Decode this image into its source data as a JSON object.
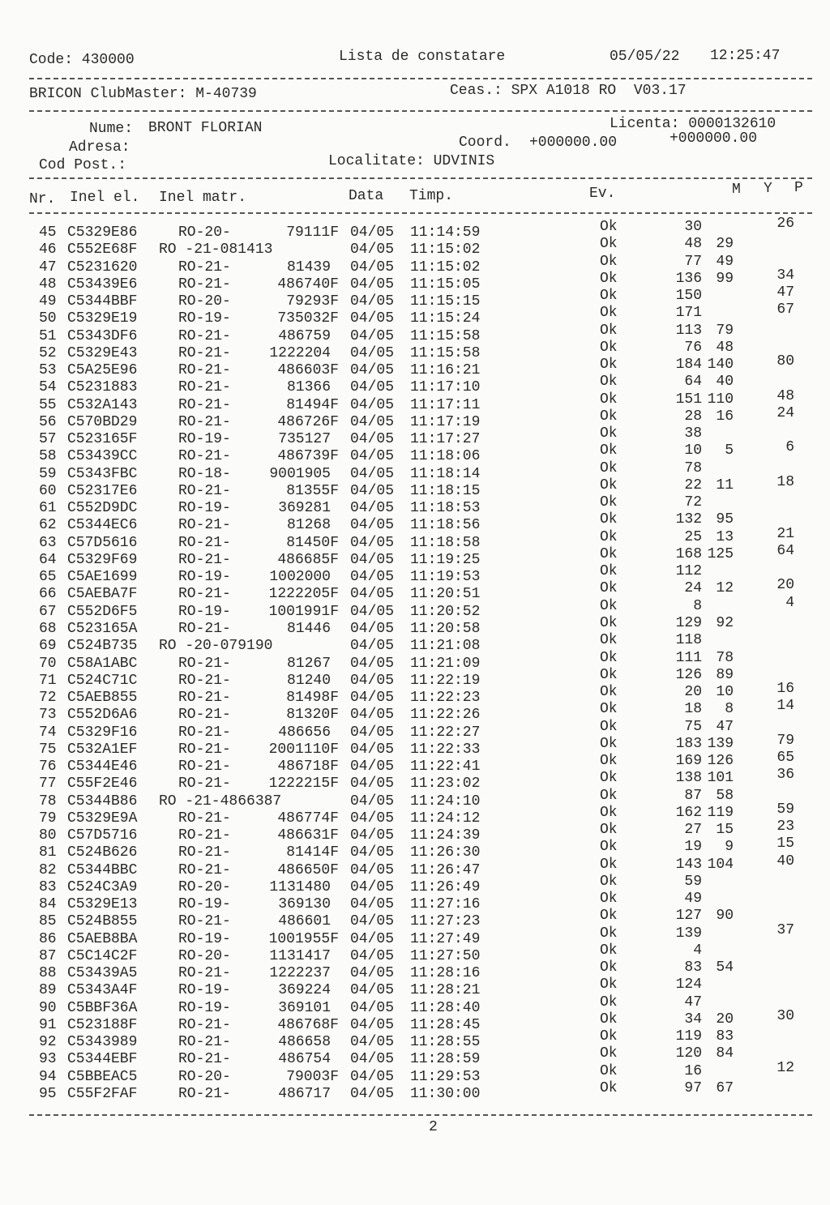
{
  "header": {
    "code": "Code: 430000",
    "title": "Lista de constatare",
    "date": "05/05/22",
    "time": "12:25:47",
    "club": "BRICON ClubMaster: M-40739",
    "clock": "Ceas.: SPX A1018 RO  V03.17",
    "name_label": "Nume:",
    "name": "BRONT FLORIAN",
    "licence": "Licenta: 0000132610",
    "address_label": "Adresa:",
    "coord_label": "Coord.",
    "coord1": "+000000.00",
    "coord2": "+000000.00",
    "postcode_label": "Cod Post.:",
    "locality": "Localitate: UDVINIS"
  },
  "columns": {
    "nr": "Nr.",
    "inel_el": "Inel el.",
    "inel_matr": "Inel matr.",
    "data": "Data",
    "timp": "Timp.",
    "ev": "Ev.",
    "m": "M",
    "y": "Y",
    "p": "P"
  },
  "rows": [
    [
      "45",
      "C5329E86",
      "RO-20-",
      "79111F",
      "04/05",
      "11:14:59",
      "Ok",
      "30",
      "",
      "26"
    ],
    [
      "46",
      "C552E68F",
      "RO -21-081413",
      "",
      "04/05",
      "11:15:02",
      "Ok",
      "48",
      "29",
      ""
    ],
    [
      "47",
      "C5231620",
      "RO-21-",
      "81439",
      "04/05",
      "11:15:02",
      "Ok",
      "77",
      "49",
      ""
    ],
    [
      "48",
      "C53439E6",
      "RO-21-",
      "486740F",
      "04/05",
      "11:15:05",
      "Ok",
      "136",
      "99",
      "34"
    ],
    [
      "49",
      "C5344BBF",
      "RO-20-",
      "79293F",
      "04/05",
      "11:15:15",
      "Ok",
      "150",
      "",
      "47"
    ],
    [
      "50",
      "C5329E19",
      "RO-19-",
      "735032F",
      "04/05",
      "11:15:24",
      "Ok",
      "171",
      "",
      "67"
    ],
    [
      "51",
      "C5343DF6",
      "RO-21-",
      "486759",
      "04/05",
      "11:15:58",
      "Ok",
      "113",
      "79",
      ""
    ],
    [
      "52",
      "C5329E43",
      "RO-21-",
      "1222204",
      "04/05",
      "11:15:58",
      "Ok",
      "76",
      "48",
      ""
    ],
    [
      "53",
      "C5A25E96",
      "RO-21-",
      "486603F",
      "04/05",
      "11:16:21",
      "Ok",
      "184",
      "140",
      "80"
    ],
    [
      "54",
      "C5231883",
      "RO-21-",
      "81366",
      "04/05",
      "11:17:10",
      "Ok",
      "64",
      "40",
      ""
    ],
    [
      "55",
      "C532A143",
      "RO-21-",
      "81494F",
      "04/05",
      "11:17:11",
      "Ok",
      "151",
      "110",
      "48"
    ],
    [
      "56",
      "C570BD29",
      "RO-21-",
      "486726F",
      "04/05",
      "11:17:19",
      "Ok",
      "28",
      "16",
      "24"
    ],
    [
      "57",
      "C523165F",
      "RO-19-",
      "735127",
      "04/05",
      "11:17:27",
      "Ok",
      "38",
      "",
      ""
    ],
    [
      "58",
      "C53439CC",
      "RO-21-",
      "486739F",
      "04/05",
      "11:18:06",
      "Ok",
      "10",
      "5",
      "6"
    ],
    [
      "59",
      "C5343FBC",
      "RO-18-",
      "9001905",
      "04/05",
      "11:18:14",
      "Ok",
      "78",
      "",
      ""
    ],
    [
      "60",
      "C52317E6",
      "RO-21-",
      "81355F",
      "04/05",
      "11:18:15",
      "Ok",
      "22",
      "11",
      "18"
    ],
    [
      "61",
      "C552D9DC",
      "RO-19-",
      "369281",
      "04/05",
      "11:18:53",
      "Ok",
      "72",
      "",
      ""
    ],
    [
      "62",
      "C5344EC6",
      "RO-21-",
      "81268",
      "04/05",
      "11:18:56",
      "Ok",
      "132",
      "95",
      ""
    ],
    [
      "63",
      "C57D5616",
      "RO-21-",
      "81450F",
      "04/05",
      "11:18:58",
      "Ok",
      "25",
      "13",
      "21"
    ],
    [
      "64",
      "C5329F69",
      "RO-21-",
      "486685F",
      "04/05",
      "11:19:25",
      "Ok",
      "168",
      "125",
      "64"
    ],
    [
      "65",
      "C5AE1699",
      "RO-19-",
      "1002000",
      "04/05",
      "11:19:53",
      "Ok",
      "112",
      "",
      ""
    ],
    [
      "66",
      "C5AEBA7F",
      "RO-21-",
      "1222205F",
      "04/05",
      "11:20:51",
      "Ok",
      "24",
      "12",
      "20"
    ],
    [
      "67",
      "C552D6F5",
      "RO-19-",
      "1001991F",
      "04/05",
      "11:20:52",
      "Ok",
      "8",
      "",
      "4"
    ],
    [
      "68",
      "C523165A",
      "RO-21-",
      "81446",
      "04/05",
      "11:20:58",
      "Ok",
      "129",
      "92",
      ""
    ],
    [
      "69",
      "C524B735",
      "RO -20-079190",
      "",
      "04/05",
      "11:21:08",
      "Ok",
      "118",
      "",
      ""
    ],
    [
      "70",
      "C58A1ABC",
      "RO-21-",
      "81267",
      "04/05",
      "11:21:09",
      "Ok",
      "111",
      "78",
      ""
    ],
    [
      "71",
      "C524C71C",
      "RO-21-",
      "81240",
      "04/05",
      "11:22:19",
      "Ok",
      "126",
      "89",
      ""
    ],
    [
      "72",
      "C5AEB855",
      "RO-21-",
      "81498F",
      "04/05",
      "11:22:23",
      "Ok",
      "20",
      "10",
      "16"
    ],
    [
      "73",
      "C552D6A6",
      "RO-21-",
      "81320F",
      "04/05",
      "11:22:26",
      "Ok",
      "18",
      "8",
      "14"
    ],
    [
      "74",
      "C5329F16",
      "RO-21-",
      "486656",
      "04/05",
      "11:22:27",
      "Ok",
      "75",
      "47",
      ""
    ],
    [
      "75",
      "C532A1EF",
      "RO-21-",
      "2001110F",
      "04/05",
      "11:22:33",
      "Ok",
      "183",
      "139",
      "79"
    ],
    [
      "76",
      "C5344E46",
      "RO-21-",
      "486718F",
      "04/05",
      "11:22:41",
      "Ok",
      "169",
      "126",
      "65"
    ],
    [
      "77",
      "C55F2E46",
      "RO-21-",
      "1222215F",
      "04/05",
      "11:23:02",
      "Ok",
      "138",
      "101",
      "36"
    ],
    [
      "78",
      "C5344B86",
      "RO -21-4866387",
      "",
      "04/05",
      "11:24:10",
      "Ok",
      "87",
      "58",
      ""
    ],
    [
      "79",
      "C5329E9A",
      "RO-21-",
      "486774F",
      "04/05",
      "11:24:12",
      "Ok",
      "162",
      "119",
      "59"
    ],
    [
      "80",
      "C57D5716",
      "RO-21-",
      "486631F",
      "04/05",
      "11:24:39",
      "Ok",
      "27",
      "15",
      "23"
    ],
    [
      "81",
      "C524B626",
      "RO-21-",
      "81414F",
      "04/05",
      "11:26:30",
      "Ok",
      "19",
      "9",
      "15"
    ],
    [
      "82",
      "C5344BBC",
      "RO-21-",
      "486650F",
      "04/05",
      "11:26:47",
      "Ok",
      "143",
      "104",
      "40"
    ],
    [
      "83",
      "C524C3A9",
      "RO-20-",
      "1131480",
      "04/05",
      "11:26:49",
      "Ok",
      "59",
      "",
      ""
    ],
    [
      "84",
      "C5329E13",
      "RO-19-",
      "369130",
      "04/05",
      "11:27:16",
      "Ok",
      "49",
      "",
      ""
    ],
    [
      "85",
      "C524B855",
      "RO-21-",
      "486601",
      "04/05",
      "11:27:23",
      "Ok",
      "127",
      "90",
      ""
    ],
    [
      "86",
      "C5AEB8BA",
      "RO-19-",
      "1001955F",
      "04/05",
      "11:27:49",
      "Ok",
      "139",
      "",
      "37"
    ],
    [
      "87",
      "C5C14C2F",
      "RO-20-",
      "1131417",
      "04/05",
      "11:27:50",
      "Ok",
      "4",
      "",
      ""
    ],
    [
      "88",
      "C53439A5",
      "RO-21-",
      "1222237",
      "04/05",
      "11:28:16",
      "Ok",
      "83",
      "54",
      ""
    ],
    [
      "89",
      "C5343A4F",
      "RO-19-",
      "369224",
      "04/05",
      "11:28:21",
      "Ok",
      "124",
      "",
      ""
    ],
    [
      "90",
      "C5BBF36A",
      "RO-19-",
      "369101",
      "04/05",
      "11:28:40",
      "Ok",
      "47",
      "",
      ""
    ],
    [
      "91",
      "C523188F",
      "RO-21-",
      "486768F",
      "04/05",
      "11:28:45",
      "Ok",
      "34",
      "20",
      "30"
    ],
    [
      "92",
      "C5343989",
      "RO-21-",
      "486658",
      "04/05",
      "11:28:55",
      "Ok",
      "119",
      "83",
      ""
    ],
    [
      "93",
      "C5344EBF",
      "RO-21-",
      "486754",
      "04/05",
      "11:28:59",
      "Ok",
      "120",
      "84",
      ""
    ],
    [
      "94",
      "C5BBEAC5",
      "RO-20-",
      "79003F",
      "04/05",
      "11:29:53",
      "Ok",
      "16",
      "",
      "12"
    ],
    [
      "95",
      "C55F2FAF",
      "RO-21-",
      "486717",
      "04/05",
      "11:30:00",
      "Ok",
      "97",
      "67",
      ""
    ]
  ],
  "footer": {
    "page_number": "2"
  }
}
